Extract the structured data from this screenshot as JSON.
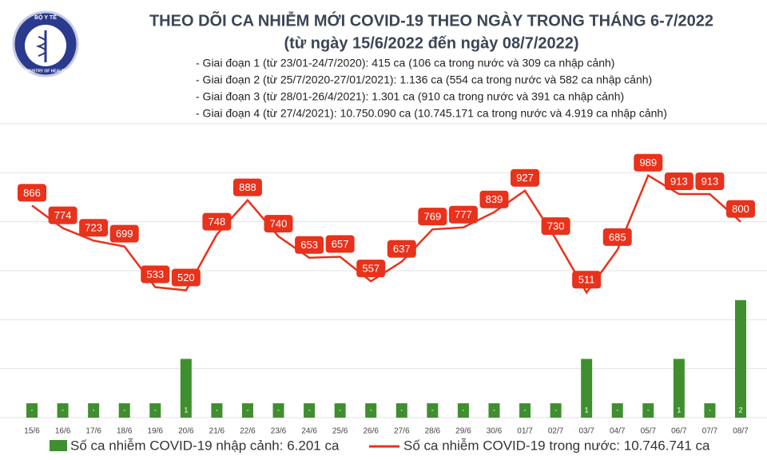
{
  "logo": {
    "top": "BỘ Y TẾ",
    "bottom": "MINISTRY OF HEALTH"
  },
  "chart_data": {
    "type": "bar-line",
    "title": "THEO DÕI CA NHIỄM MỚI COVID-19 THEO NGÀY TRONG THÁNG 6-7/2022",
    "subtitle": "(từ ngày 15/6/2022 đến ngày 08/7/2022)",
    "annotations": [
      "- Giai đoạn 1 (từ 23/01-24/7/2020): 415 ca (106 ca trong nước và 309 ca nhập cảnh)",
      "- Giai đoạn 2 (từ 25/7/2020-27/01/2021): 1.136 ca (554 ca trong nước và 582 ca nhập cảnh)",
      "- Giai đoạn 3 (từ 28/01-26/4/2021): 1.301 ca (910 ca trong nước và 391 ca nhập cảnh)",
      "- Giai đoạn 4 (từ 27/4/2021): 10.750.090 ca (10.745.171 ca trong nước và 4.919 ca nhập cảnh)"
    ],
    "categories": [
      "15/6",
      "16/6",
      "17/6",
      "18/6",
      "19/6",
      "20/6",
      "21/6",
      "22/6",
      "23/6",
      "24/6",
      "25/6",
      "26/6",
      "27/6",
      "28/6",
      "29/6",
      "30/6",
      "01/7",
      "02/7",
      "03/7",
      "04/7",
      "05/7",
      "06/7",
      "07/7",
      "08/7"
    ],
    "series": [
      {
        "name": "Số ca nhiễm COVID-19 nhập cảnh: 6.201 ca",
        "color": "#3f8f2e",
        "axis": "y",
        "values": [
          0,
          0,
          0,
          0,
          0,
          1,
          0,
          0,
          0,
          0,
          0,
          0,
          0,
          0,
          0,
          0,
          0,
          0,
          1,
          0,
          0,
          1,
          0,
          2
        ],
        "value_labels": [
          "-",
          "-",
          "-",
          "-",
          "-",
          "1",
          "-",
          "-",
          "-",
          "-",
          "-",
          "-",
          "-",
          "-",
          "-",
          "-",
          "-",
          "-",
          "1",
          "-",
          "-",
          "1",
          "-",
          "2"
        ]
      },
      {
        "name": "Số ca nhiễm COVID-19 trong nước: 10.746.741 ca",
        "color": "#e8321b",
        "axis": "y2",
        "values": [
          866,
          774,
          723,
          699,
          533,
          520,
          748,
          888,
          740,
          653,
          657,
          557,
          637,
          769,
          777,
          839,
          927,
          730,
          511,
          685,
          989,
          913,
          913,
          800
        ]
      }
    ],
    "ylim": [
      0,
      5
    ],
    "y2lim": [
      0,
      1200
    ],
    "y2ticks": [
      0,
      200,
      400,
      600,
      800,
      1000,
      1200
    ],
    "grid": true
  }
}
